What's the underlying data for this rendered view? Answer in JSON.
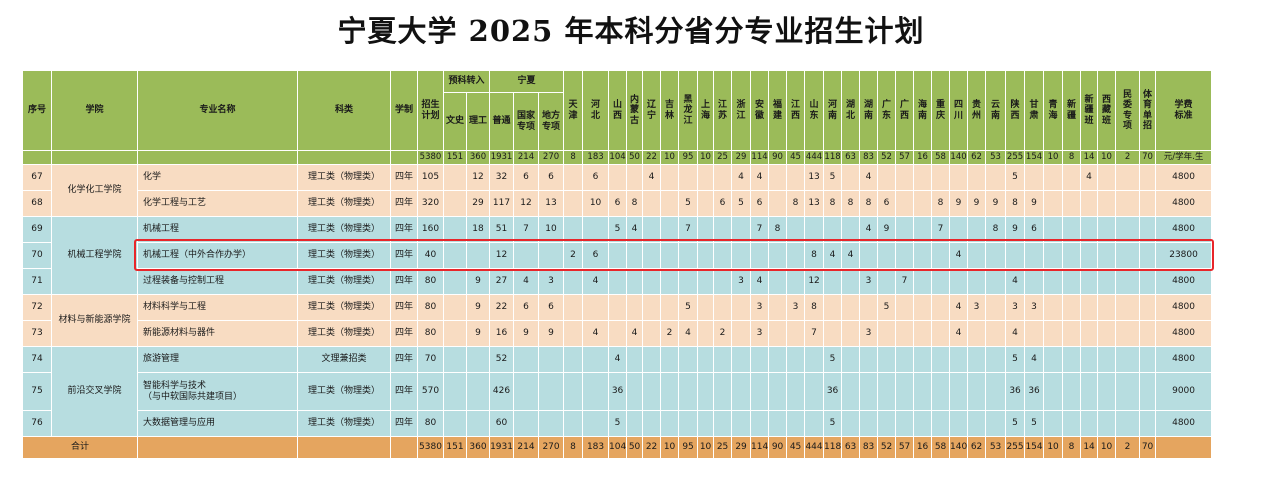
{
  "title": "宁夏大学 2025 年本科分省分专业招生计划",
  "header": {
    "seq": "序号",
    "college": "学院",
    "major": "专业名称",
    "category": "科类",
    "duration": "学制",
    "plan": "招生\n计划",
    "prep_group": "预科转入",
    "prep_wenshi": "文史",
    "prep_ligong": "理工",
    "ningxia_group": "宁夏",
    "nx_general": "普通",
    "nx_national": "国家\n专项",
    "nx_local": "地方\n专项",
    "provinces": [
      "天\n津",
      "河\n北",
      "山\n西",
      "内\n蒙\n古",
      "辽\n宁",
      "吉\n林",
      "黑\n龙\n江",
      "上\n海",
      "江\n苏",
      "浙\n江",
      "安\n徽",
      "福\n建",
      "江\n西",
      "山\n东",
      "河\n南",
      "湖\n北",
      "湖\n南",
      "广\n东",
      "广\n西",
      "海\n南",
      "重\n庆",
      "四\n川",
      "贵\n州",
      "云\n南",
      "陕\n西",
      "甘\n肃",
      "青\n海",
      "新\n疆",
      "新\n疆\n班",
      "西\n藏\n班",
      "民\n委\n专\n项",
      "体\n育\n单\n招"
    ],
    "fee": "学费\n标准"
  },
  "counts": [
    "5380",
    "151",
    "360",
    "1931",
    "214",
    "270",
    "8",
    "183",
    "104",
    "50",
    "22",
    "10",
    "95",
    "10",
    "25",
    "29",
    "114",
    "90",
    "45",
    "444",
    "118",
    "63",
    "83",
    "52",
    "57",
    "16",
    "58",
    "140",
    "62",
    "53",
    "255",
    "154",
    "10",
    "8",
    "14",
    "10",
    "2",
    "70"
  ],
  "fee_unit": "元/学年.生",
  "colleges": [
    {
      "name": "化学化工学院"
    },
    {
      "name": "机械工程学院"
    },
    {
      "name": "材料与新能源学院"
    },
    {
      "name": "前沿交叉学院"
    }
  ],
  "rows": [
    {
      "seq": "67",
      "major": "化学",
      "category": "理工类（物理类）",
      "duration": "四年",
      "plan": "105",
      "cells": [
        "",
        "12",
        "32",
        "6",
        "6",
        "",
        "6",
        "",
        "",
        "4",
        "",
        "",
        "",
        "",
        "4",
        "4",
        "",
        "",
        "13",
        "5",
        "",
        "4",
        "",
        "",
        "",
        "",
        "",
        "",
        "",
        "5",
        "",
        "",
        "",
        "4",
        "",
        "",
        ""
      ],
      "fee": "4800"
    },
    {
      "seq": "68",
      "major": "化学工程与工艺",
      "category": "理工类（物理类）",
      "duration": "四年",
      "plan": "320",
      "cells": [
        "",
        "29",
        "117",
        "12",
        "13",
        "",
        "10",
        "6",
        "8",
        "",
        "",
        "5",
        "",
        "6",
        "5",
        "6",
        "",
        "8",
        "13",
        "8",
        "8",
        "8",
        "6",
        "",
        "",
        "8",
        "9",
        "9",
        "9",
        "8",
        "9",
        "",
        "",
        "",
        "",
        "",
        ""
      ],
      "fee": "4800"
    },
    {
      "seq": "69",
      "major": "机械工程",
      "category": "理工类（物理类）",
      "duration": "四年",
      "plan": "160",
      "cells": [
        "",
        "18",
        "51",
        "7",
        "10",
        "",
        "",
        "5",
        "4",
        "",
        "",
        "7",
        "",
        "",
        "",
        "7",
        "8",
        "",
        "",
        "",
        "",
        "4",
        "9",
        "",
        "",
        "7",
        "",
        "",
        "8",
        "9",
        "6",
        "",
        "",
        "",
        "",
        "",
        ""
      ],
      "fee": "4800"
    },
    {
      "seq": "70",
      "major": "机械工程（中外合作办学）",
      "category": "理工类（物理类）",
      "duration": "四年",
      "plan": "40",
      "cells": [
        "",
        "",
        "12",
        "",
        "",
        "2",
        "6",
        "",
        "",
        "",
        "",
        "",
        "",
        "",
        "",
        "",
        "",
        "",
        "8",
        "4",
        "4",
        "",
        "",
        "",
        "",
        "",
        "4",
        "",
        "",
        "",
        "",
        "",
        "",
        "",
        "",
        "",
        ""
      ],
      "fee": "23800"
    },
    {
      "seq": "71",
      "major": "过程装备与控制工程",
      "category": "理工类（物理类）",
      "duration": "四年",
      "plan": "80",
      "cells": [
        "",
        "9",
        "27",
        "4",
        "3",
        "",
        "4",
        "",
        "",
        "",
        "",
        "",
        "",
        "",
        "3",
        "4",
        "",
        "",
        "12",
        "",
        "",
        "3",
        "",
        "7",
        "",
        "",
        "",
        "",
        "",
        "4",
        "",
        "",
        "",
        "",
        "",
        "",
        ""
      ],
      "fee": "4800"
    },
    {
      "seq": "72",
      "major": "材料科学与工程",
      "category": "理工类（物理类）",
      "duration": "四年",
      "plan": "80",
      "cells": [
        "",
        "9",
        "22",
        "6",
        "6",
        "",
        "",
        "",
        "",
        "",
        "",
        "5",
        "",
        "",
        "",
        "3",
        "",
        "3",
        "8",
        "",
        "",
        "",
        "5",
        "",
        "",
        "",
        "4",
        "3",
        "",
        "3",
        "3",
        "",
        "",
        "",
        "",
        "",
        ""
      ],
      "fee": "4800"
    },
    {
      "seq": "73",
      "major": "新能源材料与器件",
      "category": "理工类（物理类）",
      "duration": "四年",
      "plan": "80",
      "cells": [
        "",
        "9",
        "16",
        "9",
        "9",
        "",
        "4",
        "",
        "4",
        "",
        "2",
        "4",
        "",
        "2",
        "",
        "3",
        "",
        "",
        "7",
        "",
        "",
        "3",
        "",
        "",
        "",
        "",
        "4",
        "",
        "",
        "4",
        "",
        "",
        "",
        "",
        "",
        "",
        ""
      ],
      "fee": "4800"
    },
    {
      "seq": "74",
      "major": "旅游管理",
      "category": "文理兼招类",
      "duration": "四年",
      "plan": "70",
      "cells": [
        "",
        "",
        "52",
        "",
        "",
        "",
        "",
        "4",
        "",
        "",
        "",
        "",
        "",
        "",
        "",
        "",
        "",
        "",
        "",
        "5",
        "",
        "",
        "",
        "",
        "",
        "",
        "",
        "",
        "",
        "5",
        "4",
        "",
        "",
        "",
        "",
        "",
        ""
      ],
      "fee": "4800"
    },
    {
      "seq": "75",
      "major": "智能科学与技术",
      "major_sub": "（与中软国际共建项目）",
      "category": "理工类（物理类）",
      "duration": "四年",
      "plan": "570",
      "cells": [
        "",
        "",
        "426",
        "",
        "",
        "",
        "",
        "36",
        "",
        "",
        "",
        "",
        "",
        "",
        "",
        "",
        "",
        "",
        "",
        "36",
        "",
        "",
        "",
        "",
        "",
        "",
        "",
        "",
        "",
        "36",
        "36",
        "",
        "",
        "",
        "",
        "",
        ""
      ],
      "fee": "9000"
    },
    {
      "seq": "76",
      "major": "大数据管理与应用",
      "category": "理工类（物理类）",
      "duration": "四年",
      "plan": "80",
      "cells": [
        "",
        "",
        "60",
        "",
        "",
        "",
        "",
        "5",
        "",
        "",
        "",
        "",
        "",
        "",
        "",
        "",
        "",
        "",
        "",
        "5",
        "",
        "",
        "",
        "",
        "",
        "",
        "",
        "",
        "",
        "5",
        "5",
        "",
        "",
        "",
        "",
        "",
        ""
      ],
      "fee": "4800"
    }
  ],
  "total": {
    "label": "合计",
    "values": [
      "5380",
      "151",
      "360",
      "1931",
      "214",
      "270",
      "8",
      "183",
      "104",
      "50",
      "22",
      "10",
      "95",
      "10",
      "25",
      "29",
      "114",
      "90",
      "45",
      "444",
      "118",
      "63",
      "83",
      "52",
      "57",
      "16",
      "58",
      "140",
      "62",
      "53",
      "255",
      "154",
      "10",
      "8",
      "14",
      "10",
      "2",
      "70"
    ]
  }
}
